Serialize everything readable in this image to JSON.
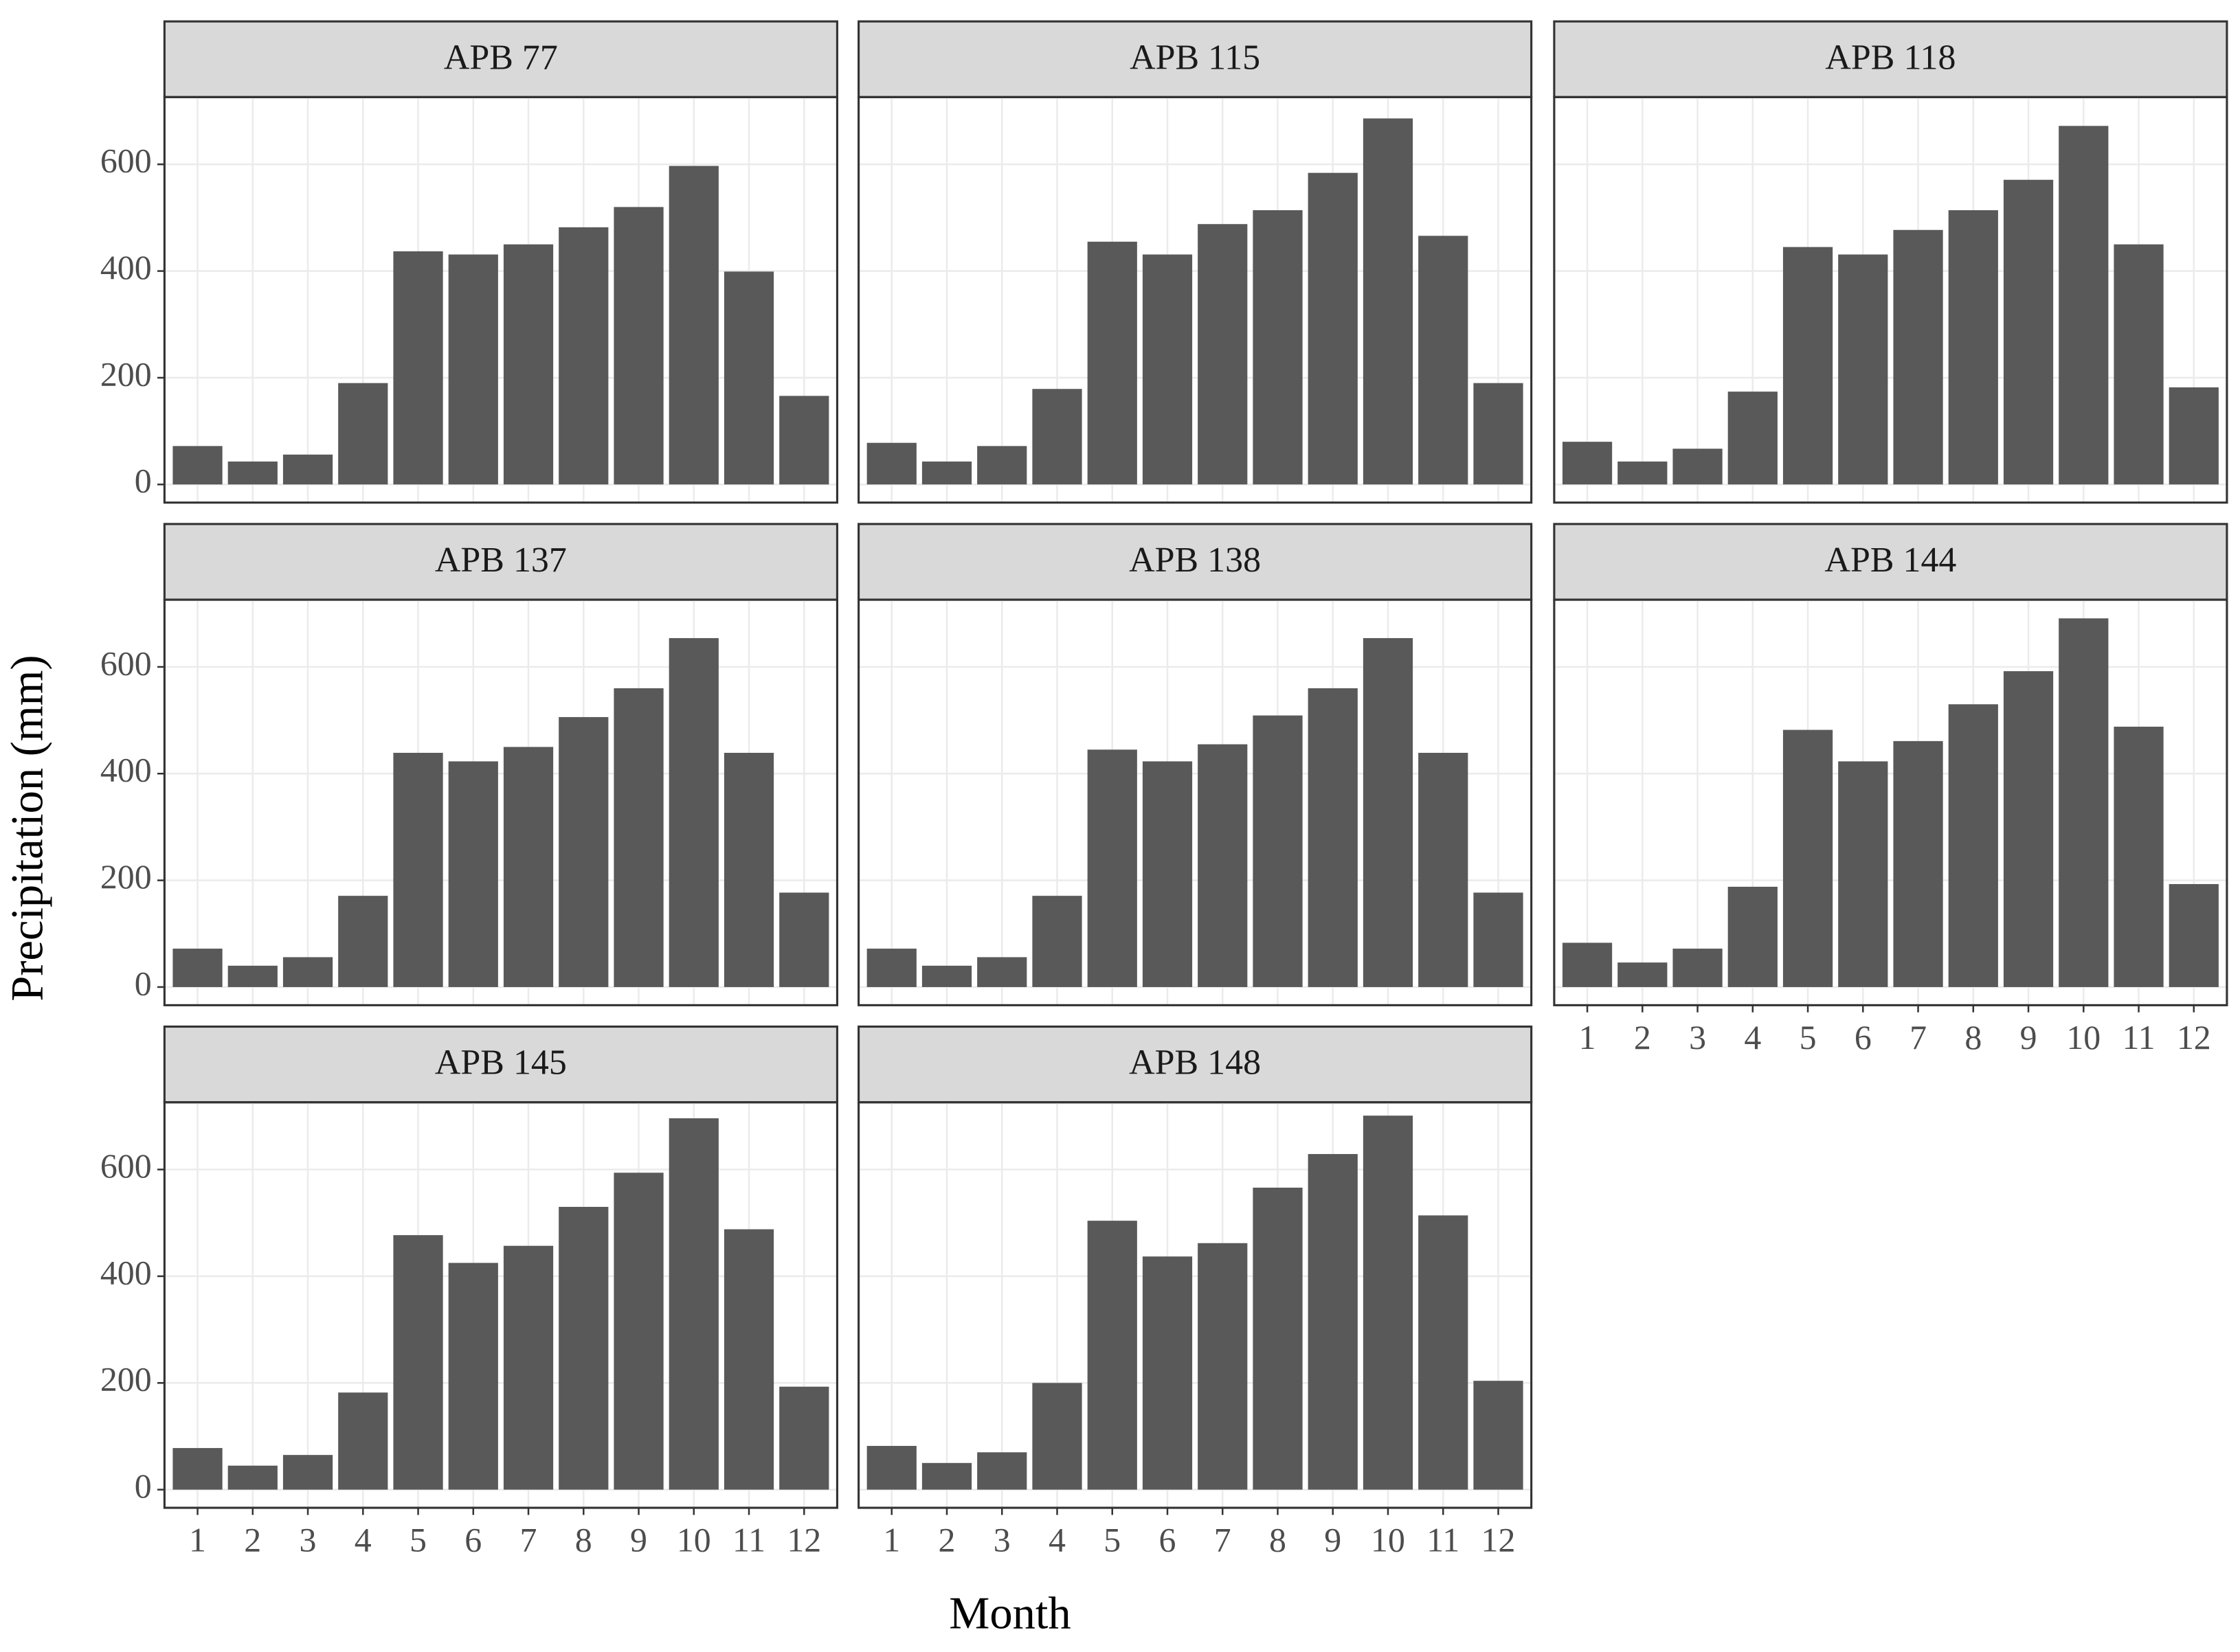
{
  "chart_data": {
    "type": "bar",
    "x_label": "Month",
    "y_label": "Precipitation (mm)",
    "color": "#595959",
    "grid": true,
    "categories": [
      "1",
      "2",
      "3",
      "4",
      "5",
      "6",
      "7",
      "8",
      "9",
      "10",
      "11",
      "12"
    ],
    "ylim": [
      -34,
      726
    ],
    "yticks": [
      0,
      200,
      400,
      600
    ],
    "panels": [
      {
        "title": "APB 77",
        "values": [
          72,
          43,
          56,
          190,
          437,
          431,
          450,
          482,
          520,
          597,
          399,
          166
        ]
      },
      {
        "title": "APB 115",
        "values": [
          78,
          43,
          72,
          179,
          455,
          431,
          488,
          514,
          584,
          686,
          466,
          190
        ]
      },
      {
        "title": "APB 118",
        "values": [
          80,
          43,
          67,
          174,
          445,
          431,
          477,
          514,
          571,
          672,
          450,
          182
        ]
      },
      {
        "title": "APB 137",
        "values": [
          72,
          40,
          56,
          171,
          439,
          423,
          450,
          506,
          560,
          654,
          439,
          177
        ]
      },
      {
        "title": "APB 138",
        "values": [
          72,
          40,
          56,
          171,
          445,
          423,
          455,
          509,
          560,
          654,
          439,
          177
        ]
      },
      {
        "title": "APB 144",
        "values": [
          83,
          46,
          72,
          188,
          482,
          423,
          461,
          530,
          592,
          691,
          488,
          193
        ]
      },
      {
        "title": "APB 145",
        "values": [
          78,
          45,
          65,
          182,
          477,
          425,
          457,
          530,
          594,
          696,
          488,
          193
        ]
      },
      {
        "title": "APB 148",
        "values": [
          82,
          50,
          70,
          200,
          504,
          437,
          462,
          566,
          629,
          701,
          514,
          204
        ]
      }
    ]
  }
}
